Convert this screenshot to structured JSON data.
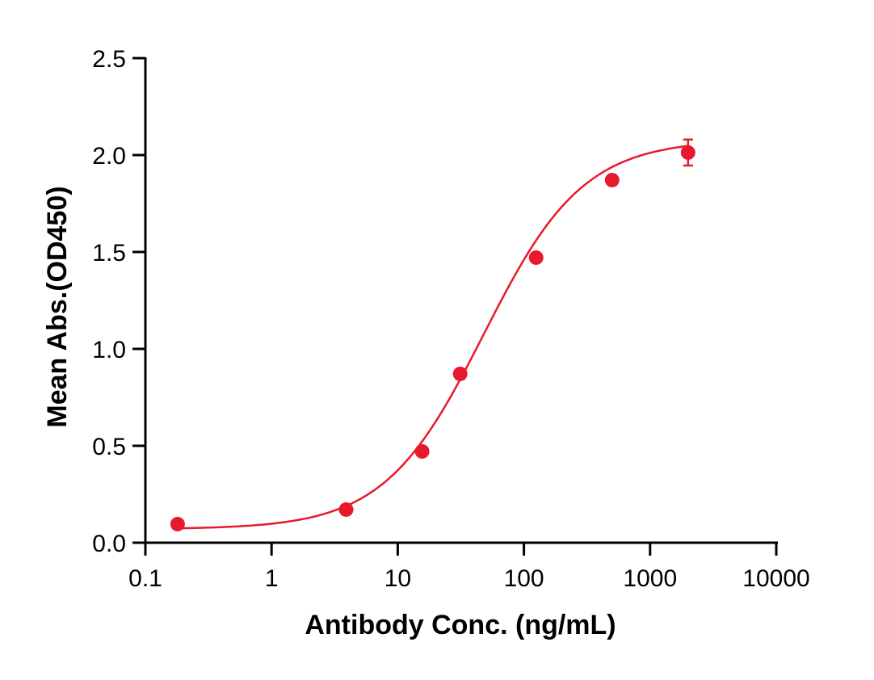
{
  "chart_data": {
    "type": "scatter",
    "title": "",
    "xlabel": "Antibody Conc. (ng/mL)",
    "ylabel": "Mean Abs.(OD450)",
    "x_scale": "log",
    "xlim": [
      0.1,
      10000
    ],
    "ylim": [
      0,
      2.5
    ],
    "x_ticks": [
      "0.1",
      "1",
      "10",
      "100",
      "1000",
      "10000"
    ],
    "y_ticks": [
      "0.0",
      "0.5",
      "1.0",
      "1.5",
      "2.0",
      "2.5"
    ],
    "grid": false,
    "color": "#e8192c",
    "fit_curve": "sigmoidal",
    "series": [
      {
        "x": [
          0.18,
          3.9,
          15.6,
          31.25,
          125,
          500,
          2000
        ],
        "y": [
          0.096,
          0.171,
          0.471,
          0.871,
          1.471,
          1.871,
          2.013
        ],
        "error": [
          0,
          0,
          0,
          0,
          0,
          0,
          0.067
        ]
      }
    ]
  }
}
